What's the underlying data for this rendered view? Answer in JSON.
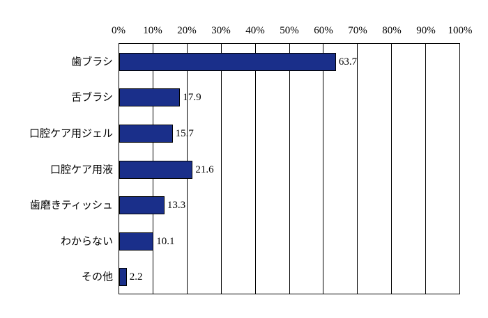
{
  "chart_data": {
    "type": "bar",
    "orientation": "horizontal",
    "title": "",
    "xlabel": "",
    "ylabel": "",
    "categories": [
      "歯ブラシ",
      "舌ブラシ",
      "口腔ケア用ジェル",
      "口腔ケア用液",
      "歯磨きティッシュ",
      "わからない",
      "その他"
    ],
    "values": [
      63.7,
      17.9,
      15.7,
      21.6,
      13.3,
      10.1,
      2.2
    ],
    "value_labels": [
      "63.7",
      "17.9",
      "15.7",
      "21.6",
      "13.3",
      "10.1",
      "2.2"
    ],
    "x_ticks": [
      "0%",
      "10%",
      "20%",
      "30%",
      "40%",
      "50%",
      "60%",
      "70%",
      "80%",
      "90%",
      "100%"
    ],
    "x_tick_values": [
      0,
      10,
      20,
      30,
      40,
      50,
      60,
      70,
      80,
      90,
      100
    ],
    "xlim": [
      0,
      100
    ],
    "grid": true,
    "legend": "none",
    "bar_color": "#1a2f8a",
    "bar_border_color": "#000000",
    "axis_color": "#000000",
    "background_color": "#ffffff"
  }
}
